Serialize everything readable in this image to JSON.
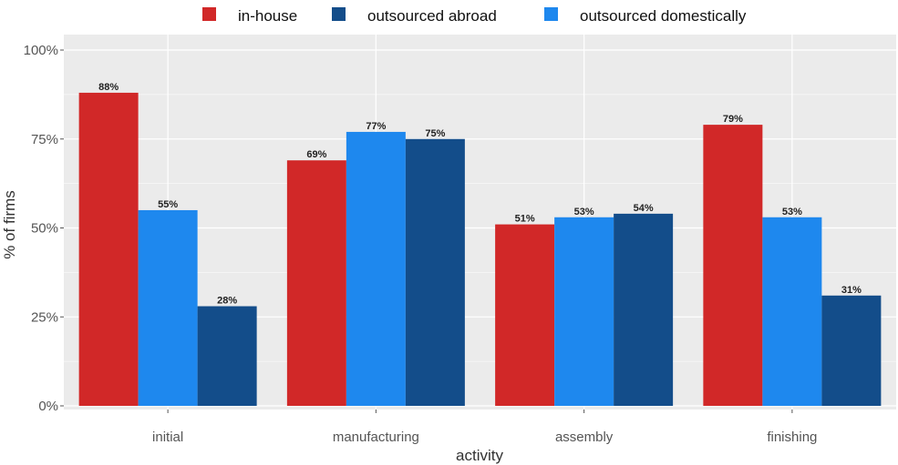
{
  "colors": {
    "in_house": "#d12828",
    "outsourced_abroad": "#134d8a",
    "outsourced_domestically": "#1e88ee",
    "panel_background": "#ebebeb",
    "grid": "#ffffff"
  },
  "legend": {
    "items": [
      {
        "label": "in-house",
        "color": "#d12828"
      },
      {
        "label": "outsourced abroad",
        "color": "#134d8a"
      },
      {
        "label": "outsourced domestically",
        "color": "#1e88ee"
      }
    ],
    "position": "top"
  },
  "chart_data": {
    "type": "bar",
    "categories": [
      "initial",
      "manufacturing",
      "assembly",
      "finishing"
    ],
    "series": [
      {
        "name": "in-house",
        "color": "#d12828",
        "values": [
          88,
          69,
          51,
          79
        ],
        "labels": [
          "88%",
          "69%",
          "51%",
          "79%"
        ]
      },
      {
        "name": "outsourced domestically",
        "color": "#1e88ee",
        "values": [
          55,
          77,
          53,
          53
        ],
        "labels": [
          "55%",
          "77%",
          "53%",
          "53%"
        ]
      },
      {
        "name": "outsourced abroad",
        "color": "#134d8a",
        "values": [
          28,
          75,
          54,
          31
        ],
        "labels": [
          "28%",
          "75%",
          "54%",
          "31%"
        ]
      }
    ],
    "xlabel": "activity",
    "ylabel": "% of firms",
    "ylim": [
      0,
      100
    ],
    "yticks": [
      0,
      25,
      50,
      75,
      100
    ],
    "ytick_labels": [
      "0%",
      "25%",
      "50%",
      "75%",
      "100%"
    ],
    "grid": true,
    "legend_position": "top"
  }
}
